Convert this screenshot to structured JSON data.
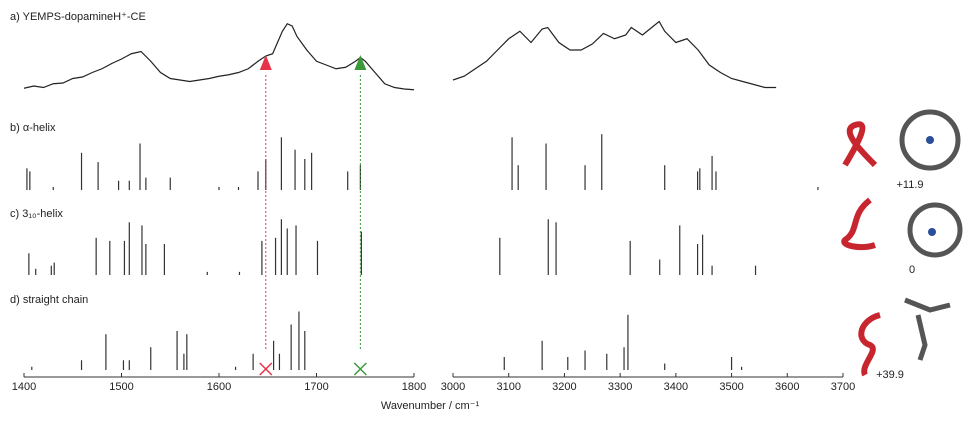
{
  "chart_data": {
    "type": "spectra",
    "x_label": "Wavenumber / cm⁻¹",
    "ylim": [
      0,
      1
    ],
    "ranges": [
      {
        "xlim": [
          1400,
          1800
        ],
        "xticks": [
          1400,
          1500,
          1600,
          1700,
          1800
        ]
      },
      {
        "xlim": [
          3000,
          3700
        ],
        "xticks": [
          3000,
          3100,
          3200,
          3300,
          3400,
          3500,
          3600,
          3700
        ]
      }
    ],
    "highlights": [
      {
        "x": 1648,
        "color": "#e8324a"
      },
      {
        "x": 1745,
        "color": "#3a9a3a"
      }
    ],
    "panels": [
      {
        "type": "line",
        "title": "a) YEMPS-dopamineH⁺-CE",
        "color": "#222222",
        "series": [
          {
            "x": [
              1400,
              1410,
              1420,
              1430,
              1440,
              1450,
              1460,
              1470,
              1480,
              1490,
              1500,
              1510,
              1520,
              1530,
              1540,
              1550,
              1560,
              1570,
              1580,
              1590,
              1600,
              1610,
              1620,
              1630,
              1640,
              1648,
              1655,
              1660,
              1665,
              1670,
              1675,
              1680,
              1690,
              1700,
              1710,
              1720,
              1730,
              1740,
              1745,
              1750,
              1760,
              1770,
              1780,
              1790,
              1800
            ],
            "values": [
              0.09,
              0.12,
              0.1,
              0.15,
              0.16,
              0.22,
              0.24,
              0.3,
              0.35,
              0.42,
              0.48,
              0.55,
              0.58,
              0.45,
              0.3,
              0.22,
              0.2,
              0.18,
              0.2,
              0.22,
              0.25,
              0.27,
              0.3,
              0.35,
              0.45,
              0.52,
              0.55,
              0.7,
              0.85,
              0.95,
              0.92,
              0.78,
              0.6,
              0.45,
              0.4,
              0.35,
              0.37,
              0.45,
              0.5,
              0.45,
              0.3,
              0.15,
              0.1,
              0.08,
              0.07
            ]
          },
          {
            "x": [
              3000,
              3020,
              3040,
              3060,
              3080,
              3100,
              3120,
              3140,
              3160,
              3170,
              3190,
              3210,
              3230,
              3250,
              3270,
              3290,
              3310,
              3320,
              3340,
              3360,
              3370,
              3380,
              3400,
              3420,
              3440,
              3460,
              3480,
              3500,
              3520,
              3540,
              3560,
              3580
            ],
            "values": [
              0.2,
              0.25,
              0.35,
              0.45,
              0.6,
              0.75,
              0.85,
              0.7,
              0.88,
              0.9,
              0.7,
              0.6,
              0.6,
              0.68,
              0.82,
              0.75,
              0.8,
              0.9,
              0.8,
              0.92,
              0.98,
              0.85,
              0.7,
              0.75,
              0.6,
              0.4,
              0.3,
              0.22,
              0.18,
              0.14,
              0.1,
              0.1
            ]
          }
        ]
      },
      {
        "type": "stick",
        "title": "b) α-helix",
        "energy_label": "+11.9",
        "color": "#333333",
        "x": [
          1403,
          1406,
          1430,
          1459,
          1476,
          1497,
          1508,
          1519,
          1525,
          1550,
          1600,
          1620,
          1640,
          1648,
          1664,
          1678,
          1688,
          1695,
          1732,
          1745,
          3106,
          3117,
          3167,
          3237,
          3267,
          3380,
          3439,
          3443,
          3465,
          3472,
          3655
        ],
        "values": [
          0.35,
          0.3,
          0.05,
          0.6,
          0.45,
          0.15,
          0.15,
          0.75,
          0.2,
          0.2,
          0.05,
          0.05,
          0.3,
          0.5,
          0.85,
          0.65,
          0.5,
          0.6,
          0.3,
          0.4,
          0.85,
          0.4,
          0.75,
          0.4,
          0.9,
          0.4,
          0.3,
          0.35,
          0.55,
          0.3,
          0.05
        ]
      },
      {
        "type": "stick",
        "title": "c) 3₁₀-helix",
        "energy_label": "0",
        "color": "#333333",
        "x": [
          1405,
          1412,
          1428,
          1431,
          1474,
          1488,
          1503,
          1508,
          1521,
          1525,
          1544,
          1588,
          1621,
          1644,
          1658,
          1664,
          1670,
          1679,
          1701,
          1746,
          3084,
          3171,
          3185,
          3318,
          3371,
          3407,
          3439,
          3448,
          3465,
          3543
        ],
        "values": [
          0.35,
          0.1,
          0.15,
          0.2,
          0.6,
          0.55,
          0.55,
          0.85,
          0.8,
          0.5,
          0.5,
          0.05,
          0.05,
          0.55,
          0.6,
          0.9,
          0.75,
          0.8,
          0.55,
          0.7,
          0.6,
          0.9,
          0.85,
          0.55,
          0.25,
          0.8,
          0.5,
          0.65,
          0.15,
          0.15
        ]
      },
      {
        "type": "stick",
        "title": "d) straight chain",
        "energy_label": "+39.9",
        "color": "#333333",
        "x": [
          1408,
          1459,
          1484,
          1502,
          1508,
          1530,
          1557,
          1564,
          1567,
          1617,
          1635,
          1656,
          1662,
          1674,
          1682,
          1688,
          3092,
          3160,
          3206,
          3237,
          3276,
          3307,
          3314,
          3380,
          3500,
          3518
        ],
        "values": [
          0.05,
          0.15,
          0.55,
          0.15,
          0.15,
          0.35,
          0.6,
          0.25,
          0.55,
          0.05,
          0.25,
          0.45,
          0.25,
          0.7,
          0.9,
          0.6,
          0.2,
          0.45,
          0.2,
          0.3,
          0.25,
          0.35,
          0.85,
          0.1,
          0.2,
          0.05
        ]
      }
    ]
  }
}
